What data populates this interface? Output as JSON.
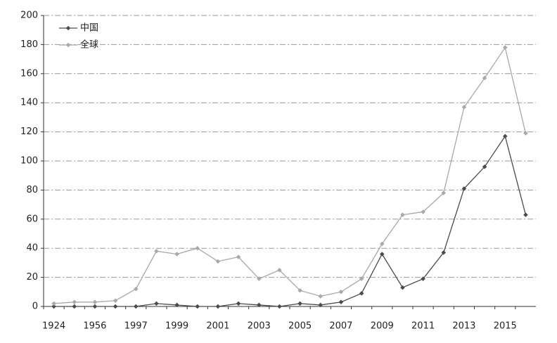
{
  "chart_data": {
    "type": "line",
    "categories": [
      "1924",
      null,
      "1956",
      null,
      "1997",
      null,
      "1999",
      null,
      "2001",
      null,
      "2003",
      null,
      "2005",
      null,
      "2007",
      null,
      "2009",
      null,
      "2011",
      null,
      "2013",
      null,
      "2015",
      null
    ],
    "series": [
      {
        "name": "中国",
        "color": "#4a4a4a",
        "values": [
          0,
          0,
          0,
          0,
          0,
          2,
          1,
          0,
          0,
          2,
          1,
          0,
          2,
          1,
          3,
          9,
          36,
          13,
          19,
          37,
          81,
          96,
          117,
          63
        ]
      },
      {
        "name": "全球",
        "color": "#a8a8a8",
        "values": [
          2,
          3,
          3,
          4,
          12,
          38,
          36,
          40,
          31,
          34,
          19,
          25,
          11,
          7,
          10,
          19,
          43,
          63,
          65,
          78,
          137,
          157,
          178,
          119
        ]
      }
    ],
    "ylim": [
      0,
      200
    ],
    "yticks": [
      0,
      20,
      40,
      60,
      80,
      100,
      120,
      140,
      160,
      180,
      200
    ],
    "grid": true,
    "legend": "top-left"
  }
}
